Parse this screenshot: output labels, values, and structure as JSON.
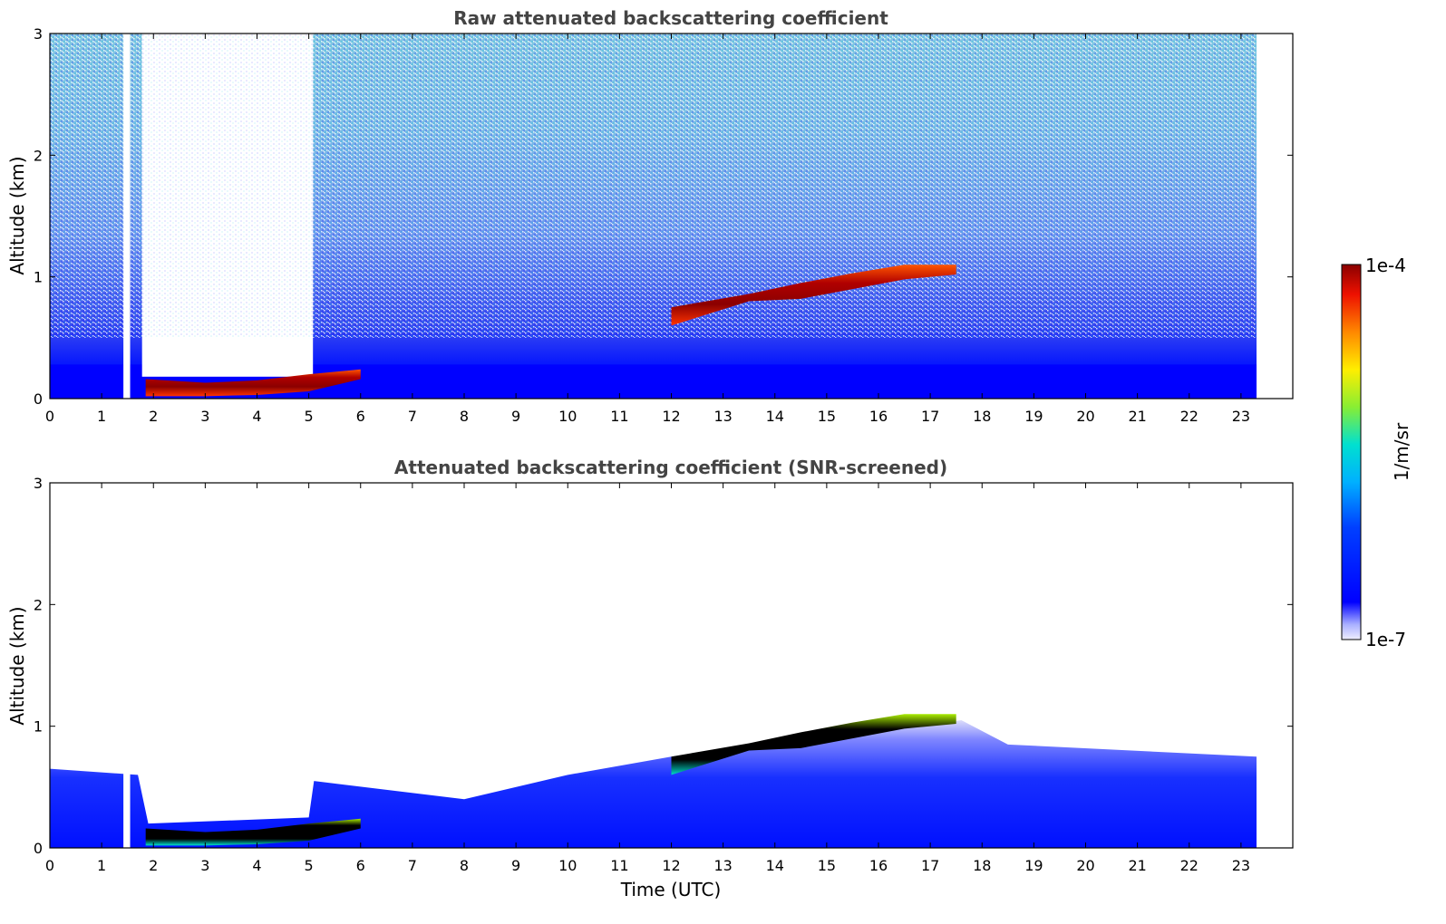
{
  "chart_data": [
    {
      "type": "heatmap",
      "title": "Raw attenuated backscattering coefficient",
      "xlabel": "",
      "ylabel": "Altitude (km)",
      "xlim": [
        0,
        24
      ],
      "ylim": [
        0,
        3
      ],
      "x_ticks": [
        "0",
        "1",
        "2",
        "3",
        "4",
        "5",
        "6",
        "7",
        "8",
        "9",
        "10",
        "11",
        "12",
        "13",
        "14",
        "15",
        "16",
        "17",
        "18",
        "19",
        "20",
        "21",
        "22",
        "23"
      ],
      "y_ticks": [
        "0",
        "1",
        "2",
        "3"
      ],
      "data_extent_hours": [
        0,
        23.3
      ],
      "gaps_hours": [
        [
          1.42,
          1.55
        ],
        [
          1.78,
          5.08
        ]
      ],
      "cloud_layer": [
        {
          "time": 1.85,
          "base_km": 0.02,
          "top_km": 0.16
        },
        {
          "time": 3.0,
          "base_km": 0.02,
          "top_km": 0.13
        },
        {
          "time": 4.0,
          "base_km": 0.03,
          "top_km": 0.15
        },
        {
          "time": 5.0,
          "base_km": 0.06,
          "top_km": 0.2
        },
        {
          "time": 6.0,
          "base_km": 0.16,
          "top_km": 0.24
        },
        {
          "time": 12.0,
          "base_km": 0.6,
          "top_km": 0.75
        },
        {
          "time": 13.5,
          "base_km": 0.8,
          "top_km": 0.86
        },
        {
          "time": 14.5,
          "base_km": 0.82,
          "top_km": 0.95
        },
        {
          "time": 15.5,
          "base_km": 0.9,
          "top_km": 1.03
        },
        {
          "time": 16.5,
          "base_km": 0.98,
          "top_km": 1.1
        },
        {
          "time": 17.5,
          "base_km": 1.02,
          "top_km": 1.1
        }
      ],
      "grid": false
    },
    {
      "type": "heatmap",
      "title": "Attenuated backscattering coefficient (SNR-screened)",
      "xlabel": "Time (UTC)",
      "ylabel": "Altitude (km)",
      "xlim": [
        0,
        24
      ],
      "ylim": [
        0,
        3
      ],
      "x_ticks": [
        "0",
        "1",
        "2",
        "3",
        "4",
        "5",
        "6",
        "7",
        "8",
        "9",
        "10",
        "11",
        "12",
        "13",
        "14",
        "15",
        "16",
        "17",
        "18",
        "19",
        "20",
        "21",
        "22",
        "23"
      ],
      "y_ticks": [
        "0",
        "1",
        "2",
        "3"
      ],
      "data_extent_hours": [
        0,
        23.3
      ],
      "gaps_hours": [
        [
          1.42,
          1.55
        ]
      ],
      "boundary_layer_top": [
        {
          "time": 0,
          "km": 0.65
        },
        {
          "time": 1.7,
          "km": 0.6
        },
        {
          "time": 1.9,
          "km": 0.2
        },
        {
          "time": 5.0,
          "km": 0.25
        },
        {
          "time": 5.1,
          "km": 0.55
        },
        {
          "time": 8.0,
          "km": 0.4
        },
        {
          "time": 10.0,
          "km": 0.6
        },
        {
          "time": 12.0,
          "km": 0.75
        },
        {
          "time": 14.0,
          "km": 0.85
        },
        {
          "time": 16.0,
          "km": 0.95
        },
        {
          "time": 17.6,
          "km": 1.05
        },
        {
          "time": 18.5,
          "km": 0.85
        },
        {
          "time": 23.3,
          "km": 0.75
        }
      ],
      "grid": false
    }
  ],
  "colorbar": {
    "label": "1/m/sr",
    "max_label": "1e-4",
    "min_label": "1e-7",
    "scale": "log",
    "range": [
      1e-07,
      0.0001
    ],
    "colormap_stops": [
      "#e6e6fa",
      "#0000ff",
      "#00aaff",
      "#00e0d0",
      "#88ee33",
      "#ffee00",
      "#ff8800",
      "#ee1100",
      "#8b0000"
    ]
  }
}
